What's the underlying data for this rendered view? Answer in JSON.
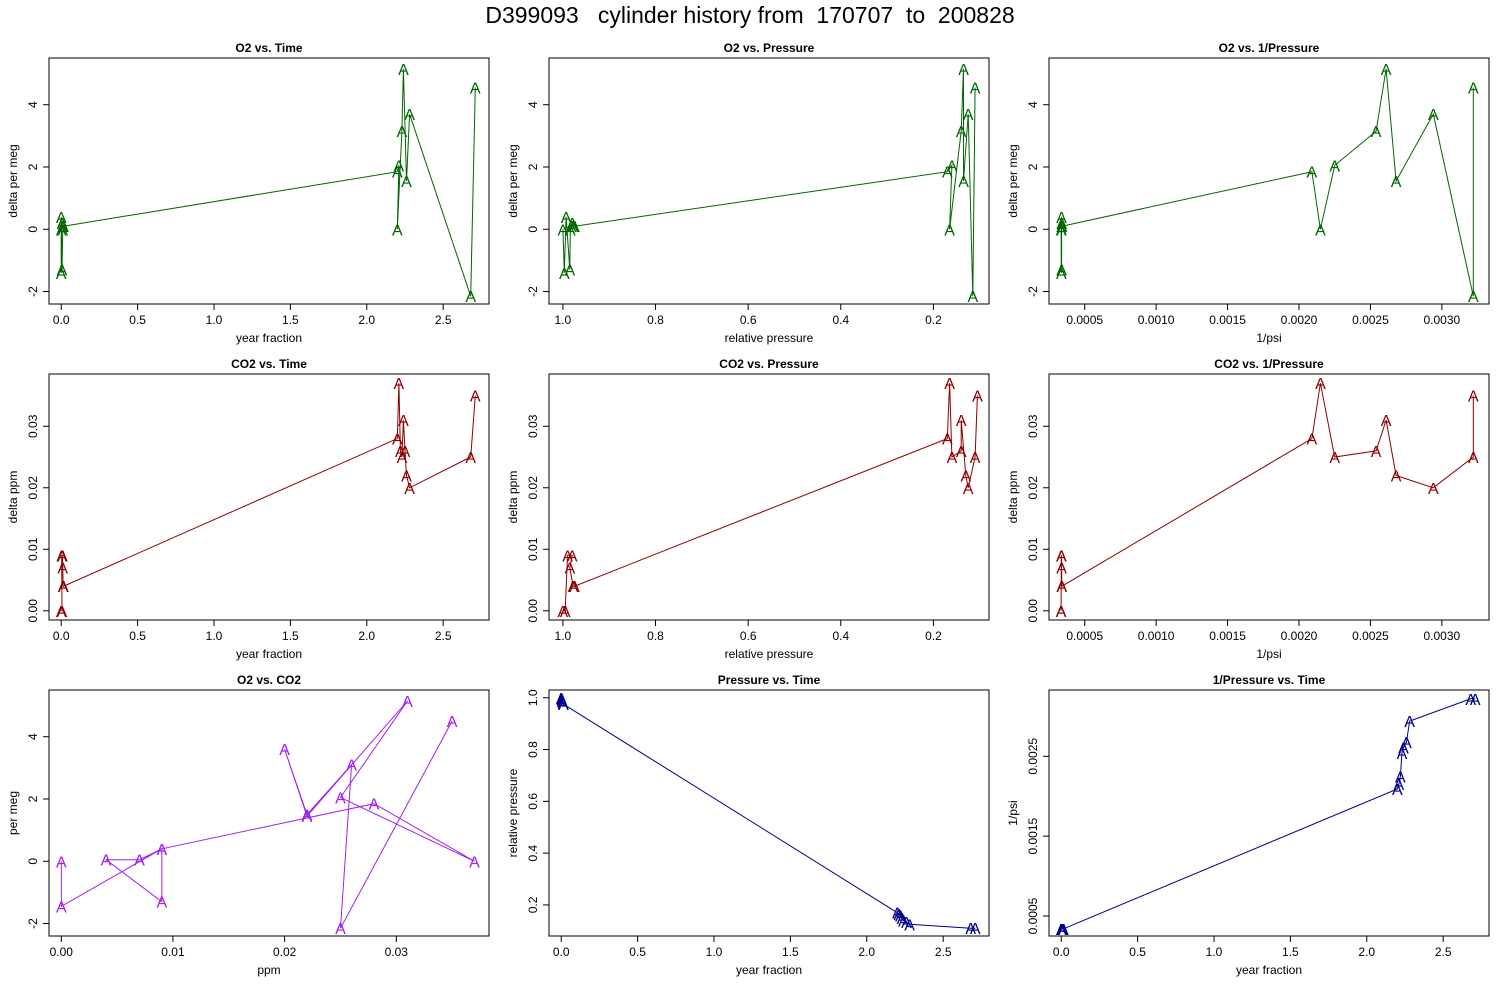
{
  "page_title": "D399093   cylinder history from  170707  to  200828",
  "chart_data": [
    {
      "type": "line",
      "title": "O2 vs. Time",
      "xlabel": "year fraction",
      "ylabel": "delta per meg",
      "color": "#006400",
      "marker": "A",
      "xlim": [
        -0.08,
        2.8
      ],
      "ylim": [
        -2.4,
        5.5
      ],
      "xreverse": false,
      "xticks": [
        0,
        0.5,
        1,
        1.5,
        2,
        2.5
      ],
      "xtick_labels": [
        "0.0",
        "0.5",
        "1.0",
        "1.5",
        "2.0",
        "2.5"
      ],
      "yticks": [
        -2,
        0,
        2,
        4
      ],
      "ytick_labels": [
        "-2",
        "0",
        "2",
        "4"
      ],
      "x": [
        0.0,
        0.0,
        0.0,
        0.005,
        0.01,
        0.01,
        0.005,
        0.01,
        0.015,
        2.2,
        2.21,
        2.2,
        2.23,
        2.24,
        2.26,
        2.28,
        2.68,
        2.71
      ],
      "y": [
        0.0,
        -1.4,
        0.4,
        -1.3,
        0.0,
        0.1,
        0.2,
        0.1,
        0.1,
        1.85,
        2.05,
        0.0,
        3.15,
        5.15,
        1.55,
        3.7,
        -2.15,
        4.55
      ]
    },
    {
      "type": "line",
      "title": "O2 vs. Pressure",
      "xlabel": "relative pressure",
      "ylabel": "delta per meg",
      "color": "#006400",
      "marker": "A",
      "xlim": [
        1.03,
        0.08
      ],
      "ylim": [
        -2.4,
        5.5
      ],
      "xreverse": true,
      "xticks": [
        1.0,
        0.8,
        0.6,
        0.4,
        0.2
      ],
      "xtick_labels": [
        "1.0",
        "0.8",
        "0.6",
        "0.4",
        "0.2"
      ],
      "yticks": [
        -2,
        0,
        2,
        4
      ],
      "ytick_labels": [
        "-2",
        "0",
        "2",
        "4"
      ],
      "x": [
        1.0,
        0.997,
        0.993,
        0.985,
        0.984,
        0.982,
        0.98,
        0.978,
        0.975,
        0.17,
        0.16,
        0.165,
        0.14,
        0.135,
        0.135,
        0.125,
        0.115,
        0.11
      ],
      "y": [
        0.0,
        -1.4,
        0.4,
        -1.3,
        0.0,
        0.1,
        0.2,
        0.1,
        0.1,
        1.85,
        2.05,
        0.0,
        3.15,
        5.15,
        1.55,
        3.7,
        -2.15,
        4.55
      ]
    },
    {
      "type": "line",
      "title": "O2 vs. 1/Pressure",
      "xlabel": "1/psi",
      "ylabel": "delta per meg",
      "color": "#006400",
      "marker": "A",
      "xlim": [
        0.00025,
        0.00333
      ],
      "ylim": [
        -2.4,
        5.5
      ],
      "xreverse": false,
      "xticks": [
        0.0005,
        0.001,
        0.0015,
        0.002,
        0.0025,
        0.003
      ],
      "xtick_labels": [
        "0.0005",
        "0.0010",
        "0.0015",
        "0.0020",
        "0.0025",
        "0.0030"
      ],
      "yticks": [
        -2,
        0,
        2,
        4
      ],
      "ytick_labels": [
        "-2",
        "0",
        "2",
        "4"
      ],
      "x": [
        0.000335,
        0.000336,
        0.000337,
        0.000338,
        0.000338,
        0.000339,
        0.000339,
        0.00034,
        0.00034,
        0.00209,
        0.00215,
        0.00225,
        0.00254,
        0.00261,
        0.00268,
        0.00294,
        0.00322,
        0.00322
      ],
      "y": [
        0.0,
        -1.4,
        0.4,
        -1.3,
        0.0,
        0.1,
        0.2,
        0.1,
        0.1,
        1.85,
        0.0,
        2.05,
        3.15,
        5.15,
        1.55,
        3.7,
        -2.15,
        4.55
      ]
    },
    {
      "type": "line",
      "title": "CO2 vs. Time",
      "xlabel": "year fraction",
      "ylabel": "delta ppm",
      "color": "#8B0000",
      "marker": "A",
      "xlim": [
        -0.08,
        2.8
      ],
      "ylim": [
        -0.0015,
        0.0385
      ],
      "xreverse": false,
      "xticks": [
        0,
        0.5,
        1,
        1.5,
        2,
        2.5
      ],
      "xtick_labels": [
        "0.0",
        "0.5",
        "1.0",
        "1.5",
        "2.0",
        "2.5"
      ],
      "yticks": [
        0,
        0.01,
        0.02,
        0.03
      ],
      "ytick_labels": [
        "0.00",
        "0.01",
        "0.02",
        "0.03"
      ],
      "x": [
        0.0,
        0.005,
        0.003,
        0.008,
        0.01,
        0.012,
        0.015,
        2.2,
        2.21,
        2.22,
        2.23,
        2.24,
        2.25,
        2.26,
        2.28,
        2.68,
        2.71
      ],
      "y": [
        0.0,
        0.0,
        0.009,
        0.009,
        0.007,
        0.004,
        0.004,
        0.028,
        0.037,
        0.026,
        0.025,
        0.031,
        0.026,
        0.022,
        0.02,
        0.025,
        0.035
      ]
    },
    {
      "type": "line",
      "title": "CO2 vs. Pressure",
      "xlabel": "relative pressure",
      "ylabel": "delta ppm",
      "color": "#8B0000",
      "marker": "A",
      "xlim": [
        1.03,
        0.08
      ],
      "ylim": [
        -0.0015,
        0.0385
      ],
      "xreverse": true,
      "xticks": [
        1.0,
        0.8,
        0.6,
        0.4,
        0.2
      ],
      "xtick_labels": [
        "1.0",
        "0.8",
        "0.6",
        "0.4",
        "0.2"
      ],
      "yticks": [
        0,
        0.01,
        0.02,
        0.03
      ],
      "ytick_labels": [
        "0.00",
        "0.01",
        "0.02",
        "0.03"
      ],
      "x": [
        1.0,
        0.995,
        0.99,
        0.98,
        0.985,
        0.978,
        0.975,
        0.17,
        0.165,
        0.16,
        0.14,
        0.14,
        0.13,
        0.125,
        0.11,
        0.105
      ],
      "y": [
        0.0,
        0.0,
        0.009,
        0.009,
        0.007,
        0.004,
        0.004,
        0.028,
        0.037,
        0.025,
        0.026,
        0.031,
        0.022,
        0.02,
        0.025,
        0.035
      ]
    },
    {
      "type": "line",
      "title": "CO2 vs. 1/Pressure",
      "xlabel": "1/psi",
      "ylabel": "delta ppm",
      "color": "#8B0000",
      "marker": "A",
      "xlim": [
        0.00025,
        0.00333
      ],
      "ylim": [
        -0.0015,
        0.0385
      ],
      "xreverse": false,
      "xticks": [
        0.0005,
        0.001,
        0.0015,
        0.002,
        0.0025,
        0.003
      ],
      "xtick_labels": [
        "0.0005",
        "0.0010",
        "0.0015",
        "0.0020",
        "0.0025",
        "0.0030"
      ],
      "yticks": [
        0,
        0.01,
        0.02,
        0.03
      ],
      "ytick_labels": [
        "0.00",
        "0.01",
        "0.02",
        "0.03"
      ],
      "x": [
        0.000335,
        0.000335,
        0.000336,
        0.000337,
        0.000338,
        0.000339,
        0.00034,
        0.00209,
        0.00215,
        0.00225,
        0.00254,
        0.00261,
        0.00268,
        0.00294,
        0.00322,
        0.00322
      ],
      "y": [
        0.0,
        0.0,
        0.009,
        0.009,
        0.007,
        0.004,
        0.004,
        0.028,
        0.037,
        0.025,
        0.026,
        0.031,
        0.022,
        0.02,
        0.025,
        0.035
      ]
    },
    {
      "type": "line",
      "title": "O2 vs. CO2",
      "xlabel": "ppm",
      "ylabel": "per meg",
      "color": "#A020F0",
      "marker": "A",
      "xlim": [
        -0.0011,
        0.0383
      ],
      "ylim": [
        -2.4,
        5.5
      ],
      "xreverse": false,
      "xticks": [
        0,
        0.01,
        0.02,
        0.03
      ],
      "xtick_labels": [
        "0.00",
        "0.01",
        "0.02",
        "0.03"
      ],
      "yticks": [
        -2,
        0,
        2,
        4
      ],
      "ytick_labels": [
        "-2",
        "0",
        "2",
        "4"
      ],
      "x": [
        0.0,
        0.0,
        0.009,
        0.009,
        0.004,
        0.007,
        0.009,
        0.028,
        0.037,
        0.025,
        0.031,
        0.022,
        0.02,
        0.022,
        0.026,
        0.025,
        0.035
      ],
      "y": [
        0.0,
        -1.45,
        0.4,
        -1.3,
        0.05,
        0.05,
        0.4,
        1.85,
        0.0,
        2.05,
        5.15,
        1.45,
        3.6,
        1.5,
        3.1,
        -2.15,
        4.5
      ]
    },
    {
      "type": "line",
      "title": "Pressure vs. Time",
      "xlabel": "year fraction",
      "ylabel": "relative pressure",
      "color": "#00008B",
      "marker": "A",
      "xlim": [
        -0.08,
        2.8
      ],
      "ylim": [
        0.08,
        1.03
      ],
      "xreverse": false,
      "xticks": [
        0,
        0.5,
        1,
        1.5,
        2,
        2.5
      ],
      "xtick_labels": [
        "0.0",
        "0.5",
        "1.0",
        "1.5",
        "2.0",
        "2.5"
      ],
      "yticks": [
        0.2,
        0.4,
        0.6,
        0.8,
        1.0
      ],
      "ytick_labels": [
        "0.2",
        "0.4",
        "0.6",
        "0.8",
        "1.0"
      ],
      "x": [
        0.0,
        0.003,
        0.006,
        0.009,
        0.012,
        0.015,
        2.2,
        2.21,
        2.22,
        2.23,
        2.24,
        2.26,
        2.28,
        2.68,
        2.71
      ],
      "y": [
        1.0,
        0.995,
        0.99,
        0.985,
        0.98,
        0.975,
        0.17,
        0.165,
        0.16,
        0.15,
        0.14,
        0.135,
        0.125,
        0.11,
        0.11
      ]
    },
    {
      "type": "line",
      "title": "1/Pressure vs. Time",
      "xlabel": "year fraction",
      "ylabel": "1/psi",
      "color": "#00008B",
      "marker": "A",
      "xlim": [
        -0.08,
        2.8
      ],
      "ylim": [
        0.00025,
        0.00333
      ],
      "xreverse": false,
      "xticks": [
        0,
        0.5,
        1,
        1.5,
        2,
        2.5
      ],
      "xtick_labels": [
        "0.0",
        "0.5",
        "1.0",
        "1.5",
        "2.0",
        "2.5"
      ],
      "yticks": [
        0.0005,
        0.0015,
        0.0025
      ],
      "ytick_labels": [
        "0.0005",
        "0.0015",
        "0.0025"
      ],
      "x": [
        0.0,
        0.003,
        0.006,
        0.009,
        0.012,
        0.015,
        2.2,
        2.21,
        2.22,
        2.23,
        2.24,
        2.26,
        2.28,
        2.68,
        2.71
      ],
      "y": [
        0.000335,
        0.000336,
        0.000337,
        0.000338,
        0.000339,
        0.00034,
        0.00209,
        0.00215,
        0.00225,
        0.00254,
        0.00261,
        0.00268,
        0.00294,
        0.00322,
        0.00322
      ]
    }
  ]
}
